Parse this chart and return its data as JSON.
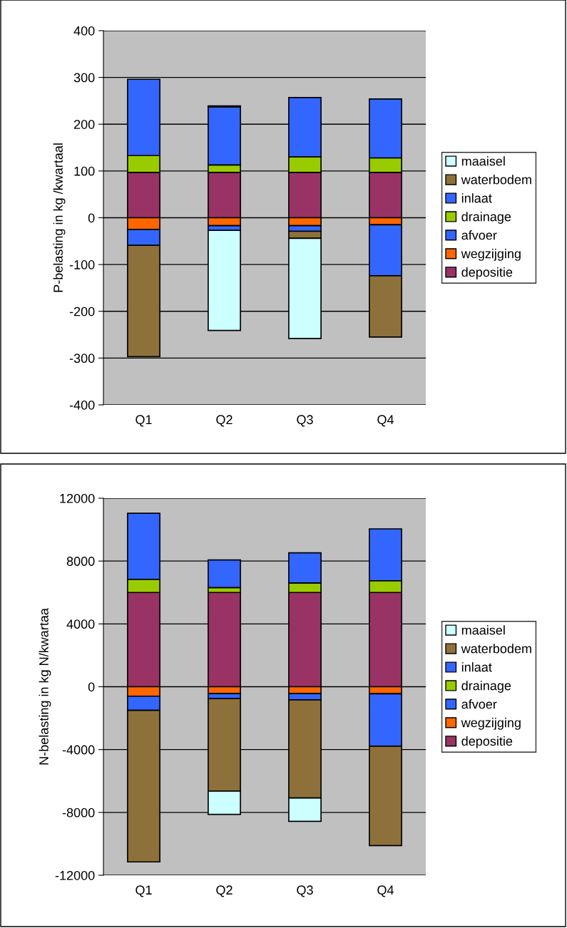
{
  "chart_data": [
    {
      "type": "bar",
      "stacked": true,
      "ylabel": "P-belasting in kg /kwartaal",
      "categories": [
        "Q1",
        "Q2",
        "Q3",
        "Q4"
      ],
      "ylim": [
        -400,
        400
      ],
      "yticks": [
        -400,
        -300,
        -200,
        -100,
        0,
        100,
        200,
        300,
        400
      ],
      "grid": "y",
      "legend": "right",
      "series": [
        {
          "name": "depositie",
          "color": "#993366",
          "values": [
            97,
            97,
            97,
            97
          ]
        },
        {
          "name": "wegzijging",
          "color": "#ff6600",
          "values": [
            -25,
            -17,
            -17,
            -15
          ]
        },
        {
          "name": "afvoer",
          "color": "#3366ff",
          "values": [
            -34,
            -10,
            -12,
            -109
          ]
        },
        {
          "name": "drainage",
          "color": "#99cc00",
          "values": [
            36,
            16,
            33,
            31
          ]
        },
        {
          "name": "inlaat",
          "color": "#3366ff",
          "values": [
            163,
            124,
            127,
            126
          ]
        },
        {
          "name": "waterbodem",
          "color": "#8e713a",
          "values": [
            -238,
            2,
            -15,
            -131
          ]
        },
        {
          "name": "maaisel",
          "color": "#ccffff",
          "values": [
            null,
            -214,
            -214,
            null
          ]
        }
      ]
    },
    {
      "type": "bar",
      "stacked": true,
      "ylabel": "N-belasting in kg N/kwartaa",
      "categories": [
        "Q1",
        "Q2",
        "Q3",
        "Q4"
      ],
      "ylim": [
        -12000,
        12000
      ],
      "yticks": [
        -12000,
        -8000,
        -4000,
        0,
        4000,
        8000,
        12000
      ],
      "grid": "y",
      "legend": "right",
      "series": [
        {
          "name": "depositie",
          "color": "#993366",
          "values": [
            6000,
            6000,
            6000,
            6000
          ]
        },
        {
          "name": "wegzijging",
          "color": "#ff6600",
          "values": [
            -600,
            -440,
            -440,
            -450
          ]
        },
        {
          "name": "afvoer",
          "color": "#3366ff",
          "values": [
            -900,
            -320,
            -390,
            -3330
          ]
        },
        {
          "name": "drainage",
          "color": "#99cc00",
          "values": [
            840,
            310,
            610,
            750
          ]
        },
        {
          "name": "inlaat",
          "color": "#3366ff",
          "values": [
            4200,
            1760,
            1910,
            3300
          ]
        },
        {
          "name": "waterbodem",
          "color": "#8e713a",
          "values": [
            -9650,
            -5880,
            -6250,
            -6330
          ]
        },
        {
          "name": "maaisel",
          "color": "#ccffff",
          "values": [
            null,
            -1490,
            -1490,
            null
          ]
        }
      ]
    }
  ]
}
